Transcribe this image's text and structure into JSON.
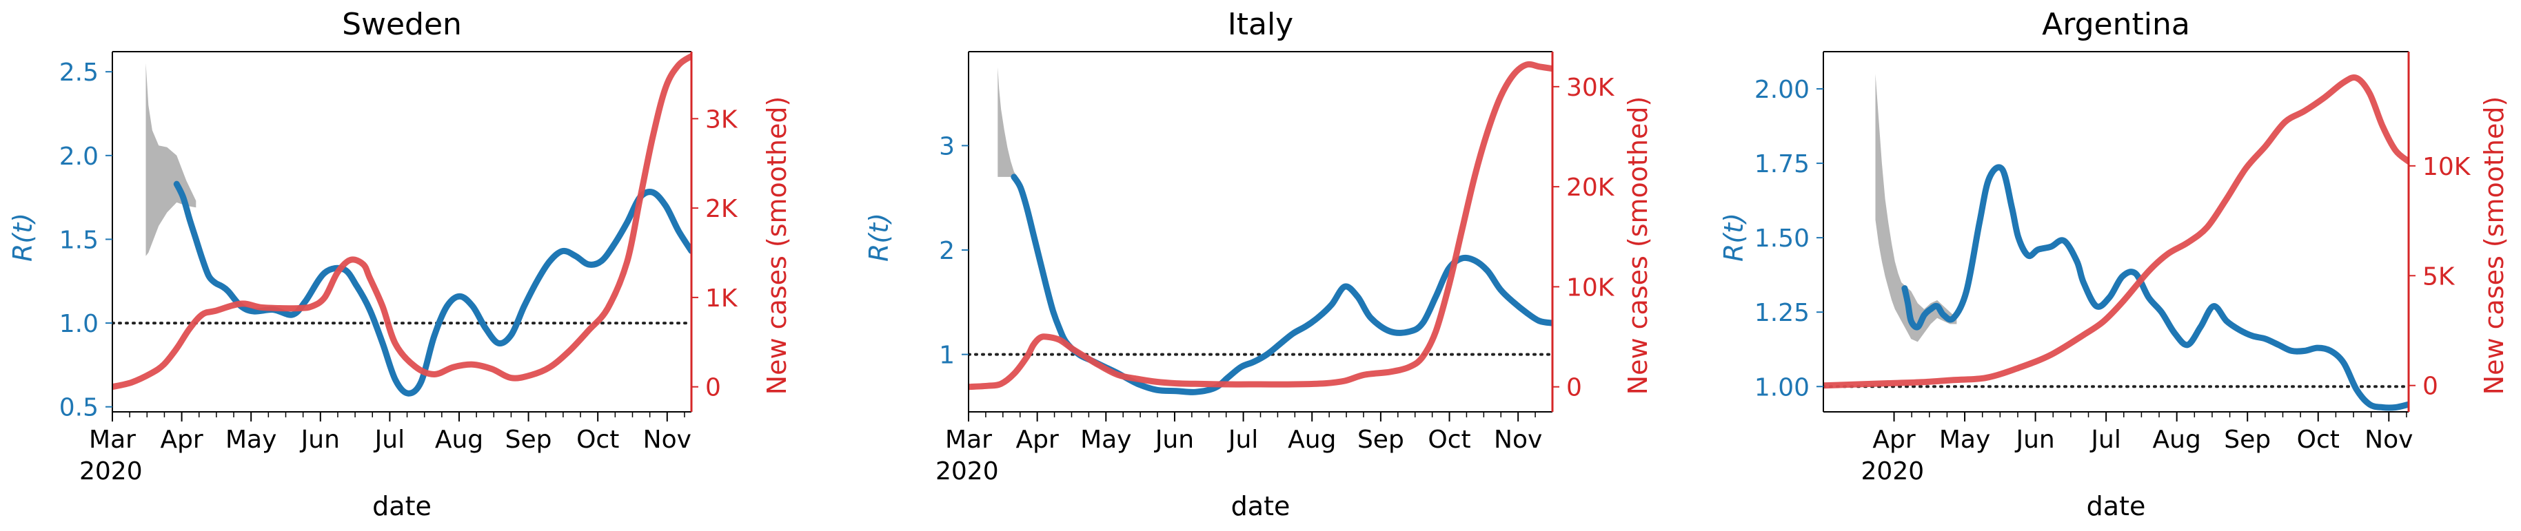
{
  "figure": {
    "xlabel": "date"
  },
  "chart_data": [
    {
      "type": "line",
      "title": "Sweden",
      "xlabel": "date",
      "y_left_label": "R(t)",
      "y_right_label": "New cases (smoothed)",
      "x_ticks": [
        "Mar\n2020",
        "Apr",
        "May",
        "Jun",
        "Jul",
        "Aug",
        "Sep",
        "Oct",
        "Nov"
      ],
      "ylim_left": [
        0.47,
        2.62
      ],
      "yticks_left": [
        "0.5",
        "1.0",
        "1.5",
        "2.0",
        "2.5"
      ],
      "yticks_left_values": [
        0.5,
        1.0,
        1.5,
        2.0,
        2.5
      ],
      "ylim_right": [
        -280,
        3750
      ],
      "yticks_right": [
        "0",
        "1K",
        "2K",
        "3K"
      ],
      "yticks_right_values": [
        0,
        1000,
        2000,
        3000
      ],
      "reference_line": 1.0,
      "series": [
        {
          "name": "R(t)",
          "axis": "left",
          "color": "#1f77b4",
          "x": [
            1.0,
            1.1,
            1.2,
            1.3,
            1.4,
            1.5,
            1.6,
            1.7,
            1.8,
            2.0,
            2.2,
            2.5,
            2.8,
            3.0,
            3.3,
            3.6,
            3.8,
            4.0,
            4.2,
            4.4,
            4.6,
            4.8,
            5.0,
            5.2,
            5.4,
            5.6,
            5.8,
            6.0,
            6.2,
            6.4,
            6.6,
            6.8,
            7.0,
            7.2,
            7.4,
            7.6,
            7.8,
            8.0,
            8.2,
            8.4,
            8.6,
            8.8,
            9.0
          ],
          "y": [
            1.83,
            1.75,
            1.62,
            1.5,
            1.38,
            1.28,
            1.24,
            1.22,
            1.19,
            1.1,
            1.07,
            1.08,
            1.05,
            1.13,
            1.3,
            1.32,
            1.22,
            1.08,
            0.88,
            0.66,
            0.58,
            0.65,
            0.92,
            1.1,
            1.16,
            1.1,
            0.97,
            0.88,
            0.93,
            1.1,
            1.25,
            1.37,
            1.43,
            1.4,
            1.35,
            1.37,
            1.47,
            1.6,
            1.75,
            1.78,
            1.7,
            1.55,
            1.43
          ]
        },
        {
          "name": "New cases (smoothed)",
          "axis": "right",
          "color": "#d62728",
          "x": [
            0.0,
            0.3,
            0.6,
            0.8,
            1.0,
            1.2,
            1.4,
            1.6,
            2.0,
            2.3,
            2.6,
            2.9,
            3.1,
            3.3,
            3.5,
            3.7,
            3.9,
            4.0,
            4.2,
            4.4,
            4.7,
            5.0,
            5.3,
            5.6,
            5.9,
            6.2,
            6.5,
            6.8,
            7.1,
            7.4,
            7.7,
            8.0,
            8.2,
            8.4,
            8.6,
            8.8,
            9.0
          ],
          "y": [
            0,
            50,
            150,
            250,
            430,
            650,
            810,
            850,
            930,
            890,
            880,
            880,
            900,
            1000,
            1280,
            1420,
            1370,
            1220,
            900,
            480,
            230,
            140,
            220,
            250,
            200,
            100,
            130,
            220,
            400,
            630,
            880,
            1400,
            2100,
            2800,
            3350,
            3600,
            3700
          ]
        }
      ],
      "band": {
        "name": "R(t) interval",
        "color": "#b5b5b5",
        "x": [
          0.52,
          0.56,
          0.62,
          0.72,
          0.85,
          1.0,
          1.15,
          1.3
        ],
        "upper": [
          2.55,
          2.3,
          2.15,
          2.06,
          2.05,
          2.0,
          1.85,
          1.73
        ],
        "lower": [
          1.4,
          1.42,
          1.48,
          1.58,
          1.66,
          1.72,
          1.7,
          1.69
        ]
      }
    },
    {
      "type": "line",
      "title": "Italy",
      "xlabel": "date",
      "y_left_label": "R(t)",
      "y_right_label": "New cases (smoothed)",
      "x_ticks": [
        "Mar\n2020",
        "Apr",
        "May",
        "Jun",
        "Jul",
        "Aug",
        "Sep",
        "Oct",
        "Nov"
      ],
      "ylim_left": [
        0.45,
        3.9
      ],
      "yticks_left": [
        "1",
        "2",
        "3"
      ],
      "yticks_left_values": [
        1,
        2,
        3
      ],
      "ylim_right": [
        -2500,
        33500
      ],
      "yticks_right": [
        "0",
        "10K",
        "20K",
        "30K"
      ],
      "yticks_right_values": [
        0,
        10000,
        20000,
        30000
      ],
      "reference_line": 1.0,
      "series": [
        {
          "name": "R(t)",
          "axis": "left",
          "color": "#1f77b4",
          "x": [
            0.7,
            0.8,
            0.9,
            1.0,
            1.1,
            1.2,
            1.3,
            1.4,
            1.5,
            1.7,
            1.9,
            2.1,
            2.3,
            2.6,
            2.9,
            3.2,
            3.5,
            3.8,
            4.0,
            4.2,
            4.4,
            4.6,
            4.8,
            5.0,
            5.2,
            5.4,
            5.6,
            5.8,
            6.0,
            6.2,
            6.5,
            6.8,
            7.0,
            7.2,
            7.4,
            7.6,
            7.8,
            8.0,
            8.2,
            8.4,
            8.6,
            8.8,
            9.0
          ],
          "y": [
            2.7,
            2.6,
            2.4,
            2.15,
            1.9,
            1.65,
            1.42,
            1.25,
            1.12,
            1.0,
            0.94,
            0.88,
            0.82,
            0.72,
            0.66,
            0.65,
            0.64,
            0.68,
            0.78,
            0.88,
            0.93,
            1.0,
            1.1,
            1.2,
            1.27,
            1.36,
            1.48,
            1.65,
            1.55,
            1.35,
            1.22,
            1.22,
            1.3,
            1.55,
            1.82,
            1.92,
            1.9,
            1.8,
            1.62,
            1.5,
            1.4,
            1.32,
            1.3
          ]
        },
        {
          "name": "New cases (smoothed)",
          "axis": "right",
          "color": "#d62728",
          "x": [
            0.0,
            0.3,
            0.5,
            0.7,
            0.9,
            1.0,
            1.1,
            1.2,
            1.4,
            1.6,
            1.8,
            2.0,
            2.3,
            2.6,
            2.9,
            3.2,
            3.5,
            4.0,
            4.5,
            5.0,
            5.5,
            5.8,
            6.1,
            6.5,
            6.8,
            7.0,
            7.2,
            7.4,
            7.6,
            7.8,
            8.0,
            8.2,
            8.4,
            8.6,
            8.8,
            9.0
          ],
          "y": [
            0,
            100,
            300,
            1300,
            3000,
            4200,
            4900,
            5000,
            4700,
            3800,
            3000,
            2200,
            1200,
            800,
            500,
            350,
            300,
            250,
            250,
            250,
            350,
            600,
            1200,
            1500,
            2000,
            3000,
            5500,
            10000,
            15500,
            21000,
            25500,
            29000,
            31200,
            32200,
            32000,
            31800
          ]
        }
      ],
      "band": {
        "name": "R(t) interval",
        "color": "#b5b5b5",
        "x": [
          0.45,
          0.47,
          0.5,
          0.55,
          0.6,
          0.65,
          0.7,
          0.75
        ],
        "upper": [
          3.75,
          3.55,
          3.35,
          3.15,
          2.98,
          2.85,
          2.75,
          2.7
        ],
        "lower": [
          2.7,
          2.7,
          2.7,
          2.7,
          2.7,
          2.7,
          2.7,
          2.7
        ]
      }
    },
    {
      "type": "line",
      "title": "Argentina",
      "xlabel": "date",
      "y_left_label": "R(t)",
      "y_right_label": "New cases (smoothed)",
      "x_ticks": [
        "Apr\n2020",
        "May",
        "Jun",
        "Jul",
        "Aug",
        "Sep",
        "Oct",
        "Nov"
      ],
      "ylim_left": [
        0.915,
        2.125
      ],
      "yticks_left": [
        "1.00",
        "1.25",
        "1.50",
        "1.75",
        "2.00"
      ],
      "yticks_left_values": [
        1.0,
        1.25,
        1.5,
        1.75,
        2.0
      ],
      "ylim_right": [
        -1200,
        15200
      ],
      "yticks_right": [
        "0",
        "5K",
        "10K"
      ],
      "yticks_right_values": [
        0,
        5000,
        10000
      ],
      "reference_line": 1.0,
      "series": [
        {
          "name": "R(t)",
          "axis": "left",
          "color": "#1f77b4",
          "x": [
            1.25,
            1.3,
            1.35,
            1.45,
            1.55,
            1.65,
            1.75,
            1.85,
            2.0,
            2.2,
            2.4,
            2.55,
            2.75,
            2.9,
            3.0,
            3.15,
            3.3,
            3.5,
            3.7,
            3.9,
            4.0,
            4.2,
            4.4,
            4.6,
            4.8,
            5.0,
            5.2,
            5.4,
            5.6,
            5.8,
            6.0,
            6.2,
            6.4,
            6.6,
            6.8,
            7.0,
            7.2,
            7.4,
            7.6,
            7.8,
            8.0,
            8.2,
            8.4,
            8.6,
            8.8,
            9.0
          ],
          "y": [
            1.33,
            1.28,
            1.22,
            1.2,
            1.24,
            1.26,
            1.27,
            1.24,
            1.23,
            1.32,
            1.55,
            1.7,
            1.73,
            1.6,
            1.5,
            1.44,
            1.46,
            1.47,
            1.49,
            1.42,
            1.35,
            1.27,
            1.3,
            1.37,
            1.38,
            1.3,
            1.25,
            1.18,
            1.14,
            1.2,
            1.27,
            1.22,
            1.19,
            1.17,
            1.16,
            1.14,
            1.12,
            1.12,
            1.13,
            1.12,
            1.08,
            0.99,
            0.94,
            0.93,
            0.93,
            0.94
          ]
        },
        {
          "name": "New cases (smoothed)",
          "axis": "right",
          "color": "#d62728",
          "x": [
            0.0,
            0.5,
            1.0,
            1.5,
            2.0,
            2.5,
            3.0,
            3.5,
            4.0,
            4.3,
            4.6,
            5.0,
            5.3,
            5.6,
            5.9,
            6.2,
            6.5,
            6.8,
            7.1,
            7.4,
            7.7,
            8.0,
            8.2,
            8.4,
            8.6,
            8.8,
            9.0
          ],
          "y": [
            0,
            50,
            100,
            150,
            250,
            350,
            800,
            1400,
            2300,
            2900,
            3800,
            5200,
            6000,
            6500,
            7200,
            8500,
            9900,
            10900,
            12000,
            12500,
            13100,
            13800,
            14000,
            13300,
            11800,
            10700,
            10200
          ]
        }
      ],
      "band": {
        "name": "R(t) interval",
        "color": "#b5b5b5",
        "x": [
          0.8,
          0.85,
          0.9,
          0.95,
          1.0,
          1.05,
          1.1,
          1.15,
          1.2,
          1.25,
          1.35,
          1.45,
          1.55,
          1.65,
          1.75,
          1.85,
          1.95,
          2.05
        ],
        "upper": [
          2.05,
          1.9,
          1.75,
          1.63,
          1.55,
          1.48,
          1.42,
          1.38,
          1.35,
          1.34,
          1.32,
          1.28,
          1.26,
          1.28,
          1.29,
          1.27,
          1.25,
          1.23
        ],
        "lower": [
          1.56,
          1.48,
          1.42,
          1.37,
          1.33,
          1.29,
          1.26,
          1.24,
          1.22,
          1.2,
          1.16,
          1.15,
          1.18,
          1.21,
          1.23,
          1.22,
          1.21,
          1.21
        ]
      }
    }
  ]
}
